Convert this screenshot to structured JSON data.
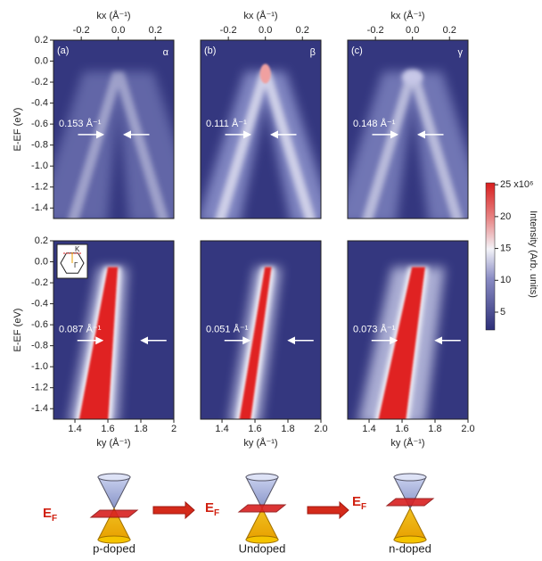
{
  "panels": [
    {
      "label": "(a)",
      "greek": "α",
      "annotation": "0.153 Å⁻¹",
      "xlabel": "kx (Å⁻¹)",
      "ylabel": "E-EF (eV)",
      "xlim": [
        -0.35,
        0.3
      ],
      "xticks": [
        -0.2,
        {
          "value": 0,
          "label": "0.0"
        },
        0.2
      ],
      "ylim": [
        -1.5,
        0.2
      ],
      "yticks": [
        0.2,
        {
          "value": 0,
          "label": "0.0"
        },
        -0.2,
        -0.4,
        -0.6,
        -0.8,
        {
          "value": -1,
          "label": "-1.0"
        },
        -1.2,
        -1.4
      ]
    },
    {
      "label": "(b)",
      "greek": "β",
      "annotation": "0.111 Å⁻¹",
      "xlabel": "kx (Å⁻¹)",
      "xlim": [
        -0.35,
        0.3
      ],
      "xticks": [
        -0.2,
        {
          "value": 0,
          "label": "0.0"
        },
        0.2
      ],
      "ylim": [
        -1.5,
        0.2
      ]
    },
    {
      "label": "(c)",
      "greek": "γ",
      "annotation": "0.148 Å⁻¹",
      "xlabel": "kx (Å⁻¹)",
      "xlim": [
        -0.35,
        0.3
      ],
      "xticks": [
        -0.2,
        {
          "value": 0,
          "label": "0.0"
        },
        0.2
      ],
      "ylim": [
        -1.5,
        0.2
      ]
    },
    {
      "annotation": "0.087 Å⁻¹",
      "inset": [
        "K",
        "Γ"
      ],
      "xlabel": "ky (Å⁻¹)",
      "ylabel": "E-EF (eV)",
      "xlim": [
        1.27,
        2.0
      ],
      "xticks": [
        1.4,
        1.6,
        1.8,
        2
      ],
      "ylim": [
        -1.5,
        0.2
      ],
      "yticks": [
        0.2,
        {
          "value": 0,
          "label": "0.0"
        },
        -0.2,
        -0.4,
        -0.6,
        -0.8,
        {
          "value": -1,
          "label": "-1.0"
        },
        -1.2,
        -1.4
      ]
    },
    {
      "annotation": "0.051 Å⁻¹",
      "xlabel": "ky (Å⁻¹)",
      "xlim": [
        1.27,
        2.0
      ],
      "xticks": [
        1.4,
        1.6,
        1.8,
        {
          "value": 2,
          "label": "2.0"
        }
      ],
      "ylim": [
        -1.5,
        0.2
      ]
    },
    {
      "annotation": "0.073 Å⁻¹",
      "xlabel": "ky (Å⁻¹)",
      "xlim": [
        1.27,
        2.0
      ],
      "xticks": [
        1.4,
        1.6,
        1.8,
        {
          "value": 2,
          "label": "2.0"
        }
      ],
      "ylim": [
        -1.5,
        0.2
      ]
    }
  ],
  "colorbar": {
    "label": "Intensity (Arb. units)",
    "ylim": [
      2.2,
      25.3
    ],
    "yticks": [
      5,
      10,
      15,
      20,
      {
        "value": 25,
        "label": "25 x10⁶"
      }
    ]
  },
  "schematic": [
    {
      "ef_main": "E",
      "ef_sub": "F",
      "label": "p-doped"
    },
    {
      "ef_main": "E",
      "ef_sub": "F",
      "label": "Undoped"
    },
    {
      "ef_main": "E",
      "ef_sub": "F",
      "label": "n-doped"
    }
  ]
}
